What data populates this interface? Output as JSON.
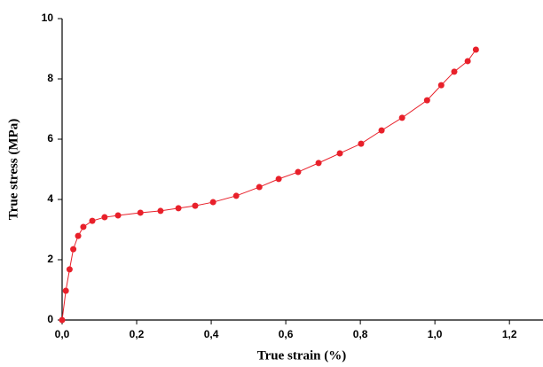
{
  "chart_data": {
    "type": "line",
    "xlabel": "True strain (%)",
    "ylabel": "True stress (MPa)",
    "x": [
      0.0,
      0.01,
      0.02,
      0.03,
      0.043,
      0.057,
      0.081,
      0.114,
      0.15,
      0.21,
      0.264,
      0.312,
      0.357,
      0.405,
      0.467,
      0.529,
      0.581,
      0.633,
      0.688,
      0.745,
      0.802,
      0.857,
      0.912,
      0.979,
      1.017,
      1.052,
      1.088,
      1.11
    ],
    "values": [
      0.0,
      0.97,
      1.68,
      2.35,
      2.79,
      3.09,
      3.29,
      3.41,
      3.47,
      3.56,
      3.62,
      3.71,
      3.79,
      3.91,
      4.12,
      4.41,
      4.68,
      4.91,
      5.21,
      5.53,
      5.85,
      6.29,
      6.71,
      7.29,
      7.79,
      8.24,
      8.59,
      8.97
    ],
    "color": "#e8202a",
    "xlim": [
      0,
      1.29
    ],
    "ylim": [
      0,
      10
    ],
    "xticks": [
      {
        "value": 0,
        "label": "0,0"
      },
      {
        "value": 0.2,
        "label": "0,2"
      },
      {
        "value": 0.4,
        "label": "0,4"
      },
      {
        "value": 0.6,
        "label": "0,6"
      },
      {
        "value": 0.8,
        "label": "0,8"
      },
      {
        "value": 1.0,
        "label": "1,0"
      },
      {
        "value": 1.2,
        "label": "1,2"
      }
    ],
    "yticks": [
      0,
      2,
      4,
      6,
      8,
      10
    ]
  }
}
